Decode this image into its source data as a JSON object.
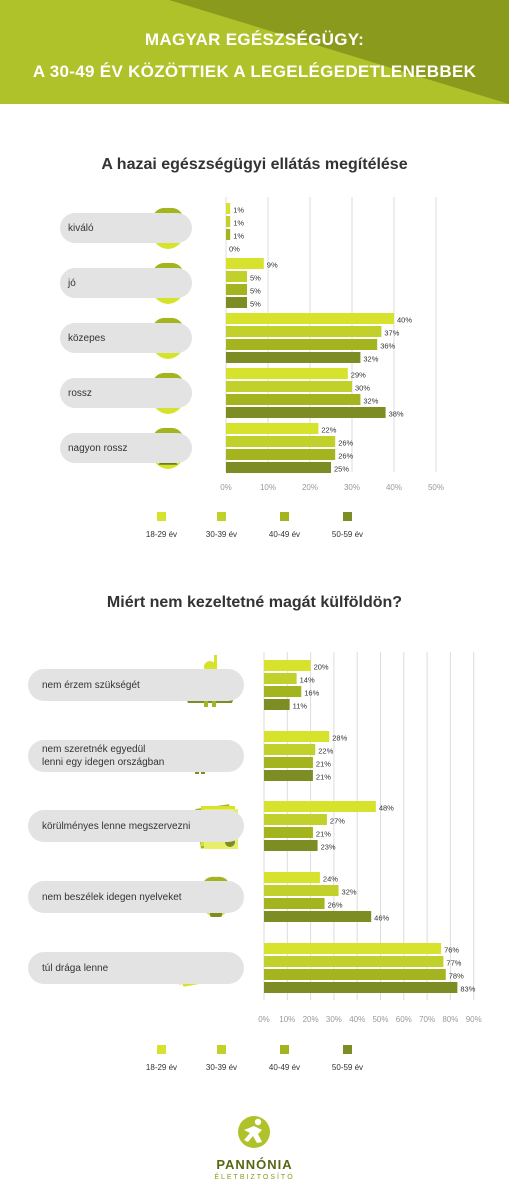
{
  "header": {
    "title_line1": "MAGYAR EGÉSZSÉGÜGY:",
    "title_line2": "A 30-49 ÉV KÖZÖTTIEK A LEGELÉGEDETLENEBBEK"
  },
  "colors": {
    "header_bg": "#b0c22a",
    "header_dark": "#8a9a1c",
    "series": [
      "#d6e22c",
      "#c1d02a",
      "#a3b41f",
      "#7e8c24"
    ],
    "pill": "#e3e3e3"
  },
  "icons": {
    "faces": [
      "face-excellent-icon",
      "face-good-icon",
      "face-average-icon",
      "face-bad-icon",
      "face-very-bad-icon"
    ],
    "reasons": [
      "superhero-icon",
      "alone-person-icon",
      "documents-icon",
      "mouth-lock-icon",
      "money-icon"
    ]
  },
  "chart_data": [
    {
      "type": "bar",
      "orientation": "horizontal",
      "title": "A hazai egészségügyi ellátás megítélése",
      "categories": [
        "kiváló",
        "jó",
        "közepes",
        "rossz",
        "nagyon rossz"
      ],
      "series": [
        {
          "name": "18-29 év",
          "values": [
            1,
            9,
            40,
            29,
            22
          ]
        },
        {
          "name": "30-39 év",
          "values": [
            1,
            5,
            37,
            30,
            26
          ]
        },
        {
          "name": "40-49 év",
          "values": [
            1,
            5,
            36,
            32,
            26
          ]
        },
        {
          "name": "50-59 év",
          "values": [
            0,
            5,
            32,
            38,
            25
          ]
        }
      ],
      "value_labels": [
        [
          "1%",
          "1%",
          "1%",
          "0%"
        ],
        [
          "9%",
          "5%",
          "5%",
          "5%"
        ],
        [
          "40%",
          "37%",
          "36%",
          "32%"
        ],
        [
          "29%",
          "30%",
          "32%",
          "38%"
        ],
        [
          "22%",
          "26%",
          "26%",
          "25%"
        ]
      ],
      "xlim": [
        0,
        50
      ],
      "xticks": [
        "0%",
        "10%",
        "20%",
        "30%",
        "40%",
        "50%"
      ],
      "grid": true,
      "legend_position": "bottom"
    },
    {
      "type": "bar",
      "orientation": "horizontal",
      "title": "Miért nem kezeltetné magát külföldön?",
      "categories": [
        "nem érzem szükségét",
        "nem szeretnék egyedül lenni egy idegen országban",
        "körülményes lenne megszervezni",
        "nem beszélek idegen nyelveket",
        "túl drága lenne"
      ],
      "category_lines": [
        [
          "nem érzem szükségét"
        ],
        [
          "nem szeretnék egyedül",
          "lenni egy idegen országban"
        ],
        [
          "körülményes lenne megszervezni"
        ],
        [
          "nem beszélek idegen nyelveket"
        ],
        [
          "túl drága lenne"
        ]
      ],
      "series": [
        {
          "name": "18-29 év",
          "values": [
            20,
            28,
            48,
            24,
            76
          ]
        },
        {
          "name": "30-39 év",
          "values": [
            14,
            22,
            27,
            32,
            77
          ]
        },
        {
          "name": "40-49 év",
          "values": [
            16,
            21,
            21,
            26,
            78
          ]
        },
        {
          "name": "50-59 év",
          "values": [
            11,
            21,
            23,
            46,
            83
          ]
        }
      ],
      "value_labels": [
        [
          "20%",
          "14%",
          "16%",
          "11%"
        ],
        [
          "28%",
          "22%",
          "21%",
          "21%"
        ],
        [
          "48%",
          "27%",
          "21%",
          "23%"
        ],
        [
          "24%",
          "32%",
          "26%",
          "46%"
        ],
        [
          "76%",
          "77%",
          "78%",
          "83%"
        ]
      ],
      "xlim": [
        0,
        90
      ],
      "xticks": [
        "0%",
        "10%",
        "20%",
        "30%",
        "40%",
        "50%",
        "60%",
        "70%",
        "80%",
        "90%"
      ],
      "grid": true,
      "legend_position": "bottom"
    }
  ],
  "legend": [
    "18-29 év",
    "30-39 év",
    "40-49 év",
    "50-59 év"
  ],
  "logo": {
    "name": "PANNÓNIA",
    "tagline": "ÉLETBIZTOSÍTÓ"
  }
}
